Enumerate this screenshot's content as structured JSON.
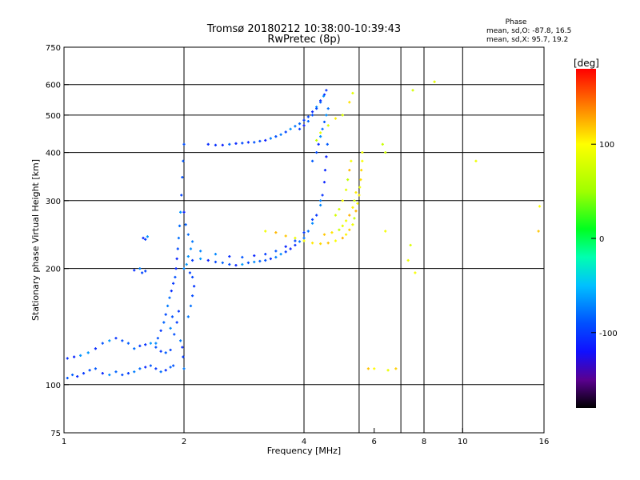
{
  "chart_data": {
    "type": "scatter",
    "title": "Tromsø 20180212 10:38:00-10:39:43",
    "subtitle": "RwPretec (8p)",
    "stats": {
      "heading": "Phase",
      "line1": "mean, sd,O: -87.8, 16.5",
      "line2": "mean, sd,X:  95.7, 19.2"
    },
    "xlabel": "Frequency [MHz]",
    "ylabel": "Stationary phase Virtual Height [km]",
    "xscale": "log",
    "yscale": "log",
    "xlim": [
      1,
      16
    ],
    "ylim": [
      75,
      750
    ],
    "xticks": [
      {
        "value": 1,
        "label": "1"
      },
      {
        "value": 2,
        "label": "2"
      },
      {
        "value": 4,
        "label": "4"
      },
      {
        "value": 6,
        "label": "6"
      },
      {
        "value": 8,
        "label": "8"
      },
      {
        "value": 10,
        "label": "10"
      },
      {
        "value": 16,
        "label": "16"
      }
    ],
    "yticks": [
      {
        "value": 75,
        "label": "75"
      },
      {
        "value": 100,
        "label": "100"
      },
      {
        "value": 200,
        "label": "200"
      },
      {
        "value": 300,
        "label": "300"
      },
      {
        "value": 400,
        "label": "400"
      },
      {
        "value": 500,
        "label": "500"
      },
      {
        "value": 600,
        "label": "600"
      },
      {
        "value": 750,
        "label": "750"
      }
    ],
    "grid_x": [
      2,
      4,
      5.5,
      7,
      8,
      10
    ],
    "grid_y": [
      100,
      200,
      300,
      400,
      500,
      600
    ],
    "colorbar": {
      "label": "[deg]",
      "range": [
        -180,
        180
      ],
      "ticks": [
        {
          "value": 100,
          "label": "100"
        },
        {
          "value": 0,
          "label": "0"
        },
        {
          "value": -100,
          "label": "-100"
        }
      ],
      "stops": [
        {
          "value": -180,
          "color": "#000000"
        },
        {
          "value": -150,
          "color": "#5a0090"
        },
        {
          "value": -120,
          "color": "#1010ff"
        },
        {
          "value": -90,
          "color": "#0050ff"
        },
        {
          "value": -50,
          "color": "#00c0ff"
        },
        {
          "value": -20,
          "color": "#00ffb0"
        },
        {
          "value": 10,
          "color": "#00ff20"
        },
        {
          "value": 50,
          "color": "#a0ff00"
        },
        {
          "value": 100,
          "color": "#ffff00"
        },
        {
          "value": 140,
          "color": "#ff8000"
        },
        {
          "value": 180,
          "color": "#ff0000"
        }
      ]
    },
    "series": [
      {
        "name": "O",
        "phase_mean": -87.8,
        "phase_sd": 16.5,
        "points": [
          [
            1.02,
            104
          ],
          [
            1.05,
            106
          ],
          [
            1.08,
            105
          ],
          [
            1.12,
            107
          ],
          [
            1.16,
            109
          ],
          [
            1.2,
            110
          ],
          [
            1.25,
            107
          ],
          [
            1.3,
            106
          ],
          [
            1.35,
            108
          ],
          [
            1.4,
            106
          ],
          [
            1.45,
            107
          ],
          [
            1.5,
            108
          ],
          [
            1.55,
            110
          ],
          [
            1.6,
            111
          ],
          [
            1.65,
            112
          ],
          [
            1.7,
            110
          ],
          [
            1.75,
            108
          ],
          [
            1.8,
            109
          ],
          [
            1.85,
            111
          ],
          [
            1.88,
            112
          ],
          [
            1.02,
            117
          ],
          [
            1.06,
            118
          ],
          [
            1.1,
            119
          ],
          [
            1.15,
            121
          ],
          [
            1.2,
            124
          ],
          [
            1.25,
            128
          ],
          [
            1.3,
            130
          ],
          [
            1.35,
            132
          ],
          [
            1.4,
            130
          ],
          [
            1.45,
            128
          ],
          [
            1.5,
            124
          ],
          [
            1.55,
            126
          ],
          [
            1.6,
            127
          ],
          [
            1.65,
            128
          ],
          [
            1.7,
            125
          ],
          [
            1.75,
            122
          ],
          [
            1.8,
            121
          ],
          [
            1.85,
            123
          ],
          [
            1.5,
            198
          ],
          [
            1.55,
            200
          ],
          [
            1.6,
            197
          ],
          [
            1.57,
            195
          ],
          [
            1.58,
            240
          ],
          [
            1.62,
            242
          ],
          [
            1.6,
            238
          ],
          [
            1.7,
            128
          ],
          [
            1.72,
            132
          ],
          [
            1.75,
            138
          ],
          [
            1.78,
            145
          ],
          [
            1.8,
            152
          ],
          [
            1.82,
            160
          ],
          [
            1.84,
            168
          ],
          [
            1.86,
            175
          ],
          [
            1.88,
            183
          ],
          [
            1.9,
            190
          ],
          [
            1.91,
            200
          ],
          [
            1.92,
            212
          ],
          [
            1.93,
            225
          ],
          [
            1.94,
            240
          ],
          [
            1.95,
            258
          ],
          [
            1.96,
            280
          ],
          [
            1.97,
            310
          ],
          [
            1.98,
            345
          ],
          [
            1.99,
            380
          ],
          [
            2.0,
            420
          ],
          [
            1.85,
            140
          ],
          [
            1.87,
            150
          ],
          [
            1.89,
            135
          ],
          [
            1.92,
            145
          ],
          [
            1.94,
            155
          ],
          [
            1.96,
            130
          ],
          [
            1.98,
            125
          ],
          [
            1.99,
            118
          ],
          [
            2.0,
            110
          ],
          [
            2.0,
            200
          ],
          [
            2.03,
            205
          ],
          [
            2.05,
            215
          ],
          [
            2.08,
            225
          ],
          [
            2.1,
            235
          ],
          [
            2.05,
            245
          ],
          [
            2.02,
            260
          ],
          [
            2.0,
            280
          ],
          [
            2.07,
            195
          ],
          [
            2.1,
            190
          ],
          [
            2.12,
            180
          ],
          [
            2.1,
            170
          ],
          [
            2.08,
            160
          ],
          [
            2.05,
            150
          ],
          [
            2.1,
            210
          ],
          [
            2.2,
            212
          ],
          [
            2.3,
            210
          ],
          [
            2.4,
            208
          ],
          [
            2.5,
            207
          ],
          [
            2.6,
            205
          ],
          [
            2.7,
            204
          ],
          [
            2.8,
            205
          ],
          [
            2.9,
            207
          ],
          [
            3.0,
            208
          ],
          [
            3.1,
            209
          ],
          [
            3.2,
            210
          ],
          [
            3.3,
            212
          ],
          [
            3.4,
            214
          ],
          [
            3.5,
            218
          ],
          [
            3.6,
            221
          ],
          [
            3.7,
            225
          ],
          [
            3.8,
            230
          ],
          [
            3.9,
            235
          ],
          [
            4.0,
            240
          ],
          [
            4.1,
            250
          ],
          [
            4.2,
            262
          ],
          [
            4.3,
            275
          ],
          [
            4.4,
            292
          ],
          [
            4.45,
            310
          ],
          [
            4.5,
            335
          ],
          [
            4.52,
            360
          ],
          [
            4.55,
            390
          ],
          [
            4.58,
            420
          ],
          [
            2.2,
            222
          ],
          [
            2.4,
            218
          ],
          [
            2.6,
            215
          ],
          [
            2.8,
            214
          ],
          [
            3.0,
            216
          ],
          [
            3.2,
            218
          ],
          [
            3.4,
            222
          ],
          [
            3.6,
            228
          ],
          [
            3.8,
            236
          ],
          [
            4.0,
            248
          ],
          [
            4.2,
            268
          ],
          [
            4.4,
            300
          ],
          [
            2.3,
            420
          ],
          [
            2.4,
            418
          ],
          [
            2.5,
            418
          ],
          [
            2.6,
            420
          ],
          [
            2.7,
            422
          ],
          [
            2.8,
            423
          ],
          [
            2.9,
            425
          ],
          [
            3.0,
            425
          ],
          [
            3.1,
            428
          ],
          [
            3.2,
            430
          ],
          [
            3.3,
            435
          ],
          [
            3.4,
            440
          ],
          [
            3.5,
            445
          ],
          [
            3.6,
            452
          ],
          [
            3.7,
            460
          ],
          [
            3.8,
            468
          ],
          [
            3.9,
            475
          ],
          [
            4.0,
            485
          ],
          [
            4.1,
            495
          ],
          [
            4.2,
            510
          ],
          [
            4.3,
            525
          ],
          [
            4.4,
            545
          ],
          [
            4.5,
            565
          ],
          [
            4.55,
            580
          ],
          [
            3.9,
            460
          ],
          [
            4.0,
            470
          ],
          [
            4.1,
            482
          ],
          [
            4.2,
            500
          ],
          [
            4.3,
            520
          ],
          [
            4.4,
            540
          ],
          [
            4.48,
            560
          ],
          [
            4.2,
            380
          ],
          [
            4.3,
            400
          ],
          [
            4.35,
            420
          ],
          [
            4.4,
            440
          ],
          [
            4.45,
            460
          ],
          [
            4.5,
            480
          ],
          [
            4.55,
            500
          ],
          [
            4.6,
            520
          ]
        ]
      },
      {
        "name": "X",
        "phase_mean": 95.7,
        "phase_sd": 19.2,
        "points": [
          [
            3.2,
            250
          ],
          [
            3.4,
            248
          ],
          [
            3.6,
            243
          ],
          [
            3.8,
            240
          ],
          [
            4.0,
            236
          ],
          [
            4.2,
            233
          ],
          [
            4.4,
            232
          ],
          [
            4.6,
            233
          ],
          [
            4.8,
            236
          ],
          [
            5.0,
            240
          ],
          [
            5.1,
            245
          ],
          [
            5.2,
            252
          ],
          [
            5.3,
            260
          ],
          [
            5.35,
            270
          ],
          [
            5.4,
            282
          ],
          [
            5.45,
            295
          ],
          [
            5.5,
            310
          ],
          [
            5.52,
            325
          ],
          [
            5.55,
            340
          ],
          [
            5.57,
            360
          ],
          [
            5.6,
            380
          ],
          [
            5.6,
            400
          ],
          [
            4.5,
            245
          ],
          [
            4.7,
            248
          ],
          [
            4.9,
            252
          ],
          [
            5.0,
            258
          ],
          [
            5.1,
            266
          ],
          [
            5.2,
            275
          ],
          [
            5.3,
            288
          ],
          [
            5.35,
            300
          ],
          [
            5.4,
            315
          ],
          [
            4.8,
            275
          ],
          [
            4.9,
            285
          ],
          [
            5.0,
            300
          ],
          [
            5.1,
            320
          ],
          [
            5.15,
            340
          ],
          [
            5.2,
            360
          ],
          [
            5.25,
            380
          ],
          [
            4.3,
            430
          ],
          [
            4.4,
            450
          ],
          [
            4.6,
            470
          ],
          [
            4.8,
            490
          ],
          [
            5.0,
            500
          ],
          [
            5.2,
            540
          ],
          [
            5.3,
            570
          ],
          [
            5.8,
            110
          ],
          [
            6.0,
            110
          ],
          [
            6.5,
            109
          ],
          [
            6.8,
            110
          ],
          [
            7.5,
            580
          ],
          [
            8.5,
            610
          ],
          [
            10.8,
            380
          ],
          [
            15.5,
            250
          ],
          [
            15.6,
            290
          ],
          [
            6.3,
            420
          ],
          [
            6.4,
            400
          ],
          [
            6.4,
            250
          ],
          [
            7.4,
            230
          ],
          [
            7.3,
            210
          ],
          [
            7.6,
            195
          ]
        ]
      }
    ]
  }
}
